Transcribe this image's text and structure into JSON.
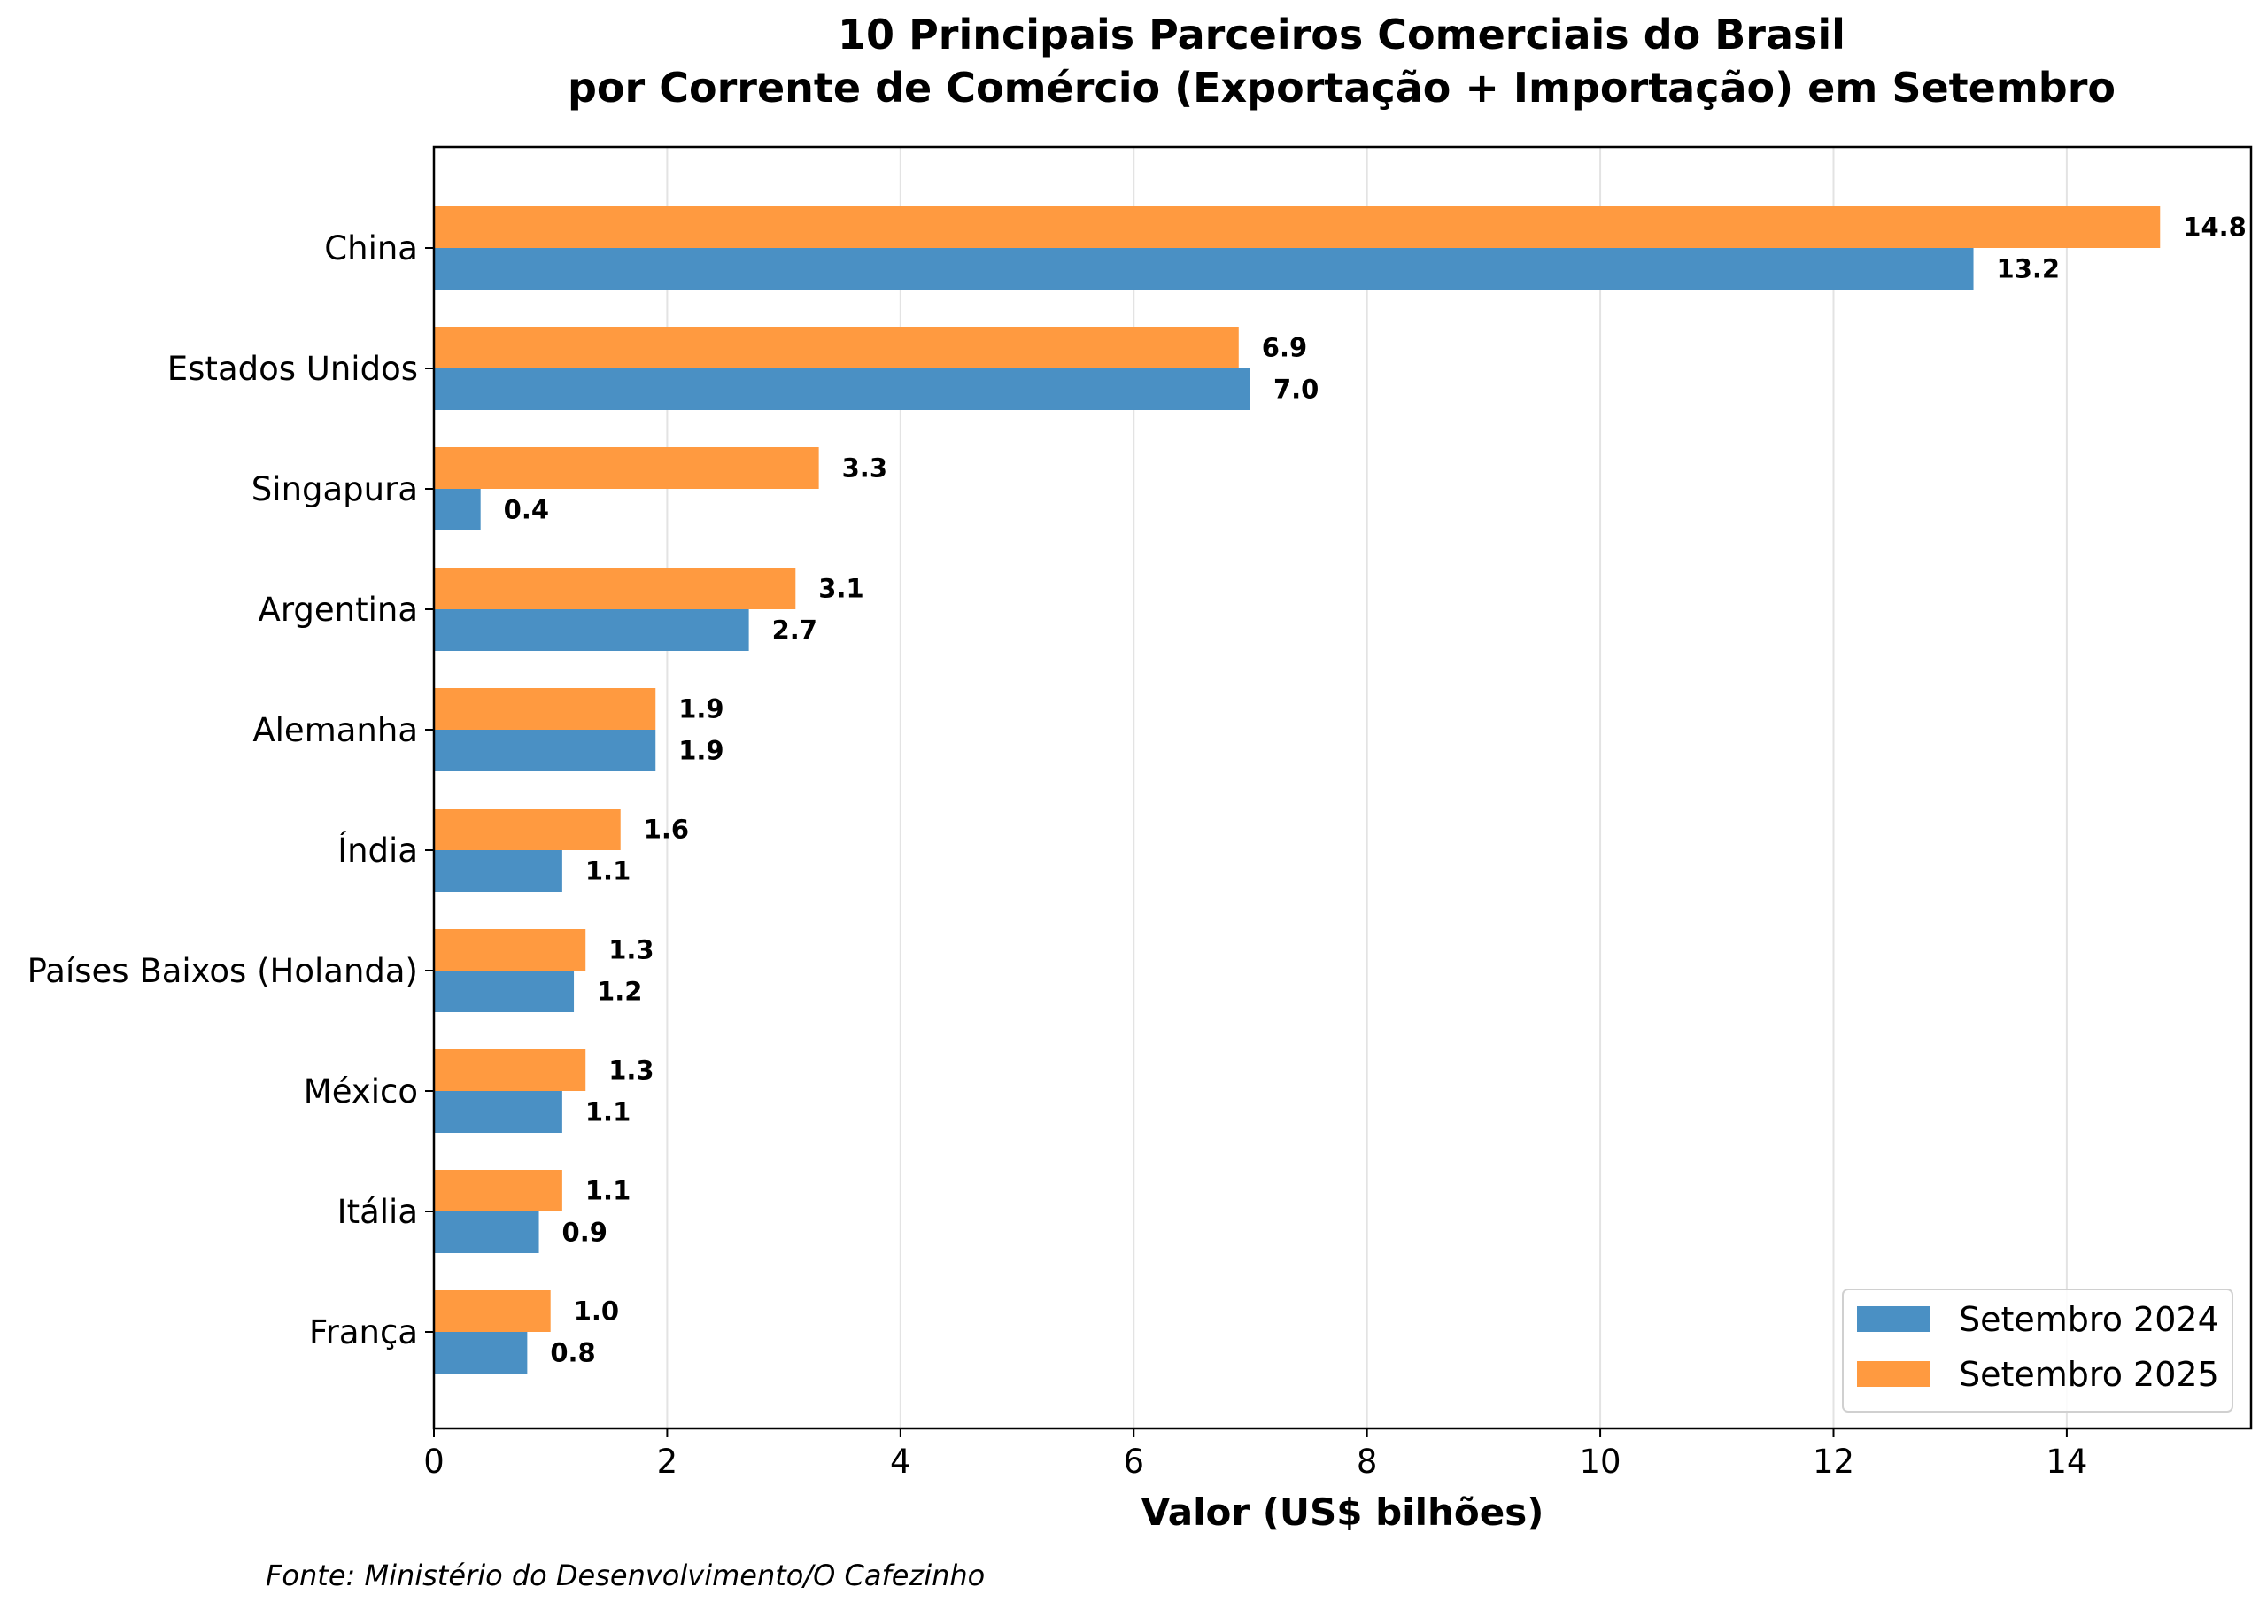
{
  "chart_data": {
    "type": "bar",
    "orientation": "horizontal",
    "title": [
      "10 Principais Parceiros Comerciais do Brasil",
      "por Corrente de Comércio (Exportação + Importação) em Setembro"
    ],
    "xlabel": "Valor (US$ bilhões)",
    "ylabel": "",
    "xlim": [
      0,
      15.58
    ],
    "xticks": [
      0,
      2,
      4,
      6,
      8,
      10,
      12,
      14
    ],
    "grid": "x",
    "legend_position": "bottom-right",
    "categories": [
      "China",
      "Estados Unidos",
      "Singapura",
      "Argentina",
      "Alemanha",
      "Índia",
      "Países Baixos (Holanda)",
      "México",
      "Itália",
      "França"
    ],
    "series": [
      {
        "name": "Setembro 2024",
        "color": "#4a90c4",
        "values": [
          13.2,
          7.0,
          0.4,
          2.7,
          1.9,
          1.1,
          1.2,
          1.1,
          0.9,
          0.8
        ],
        "labels": [
          "13.2",
          "7.0",
          "0.4",
          "2.7",
          "1.9",
          "1.1",
          "1.2",
          "1.1",
          "0.9",
          "0.8"
        ]
      },
      {
        "name": "Setembro 2025",
        "color": "#ff9a40",
        "values": [
          14.8,
          6.9,
          3.3,
          3.1,
          1.9,
          1.6,
          1.3,
          1.3,
          1.1,
          1.0
        ],
        "labels": [
          "14.8",
          "6.9",
          "3.3",
          "3.1",
          "1.9",
          "1.6",
          "1.3",
          "1.3",
          "1.1",
          "1.0"
        ]
      }
    ],
    "source": "Fonte: Ministério do Desenvolvimento/O Cafezinho"
  }
}
